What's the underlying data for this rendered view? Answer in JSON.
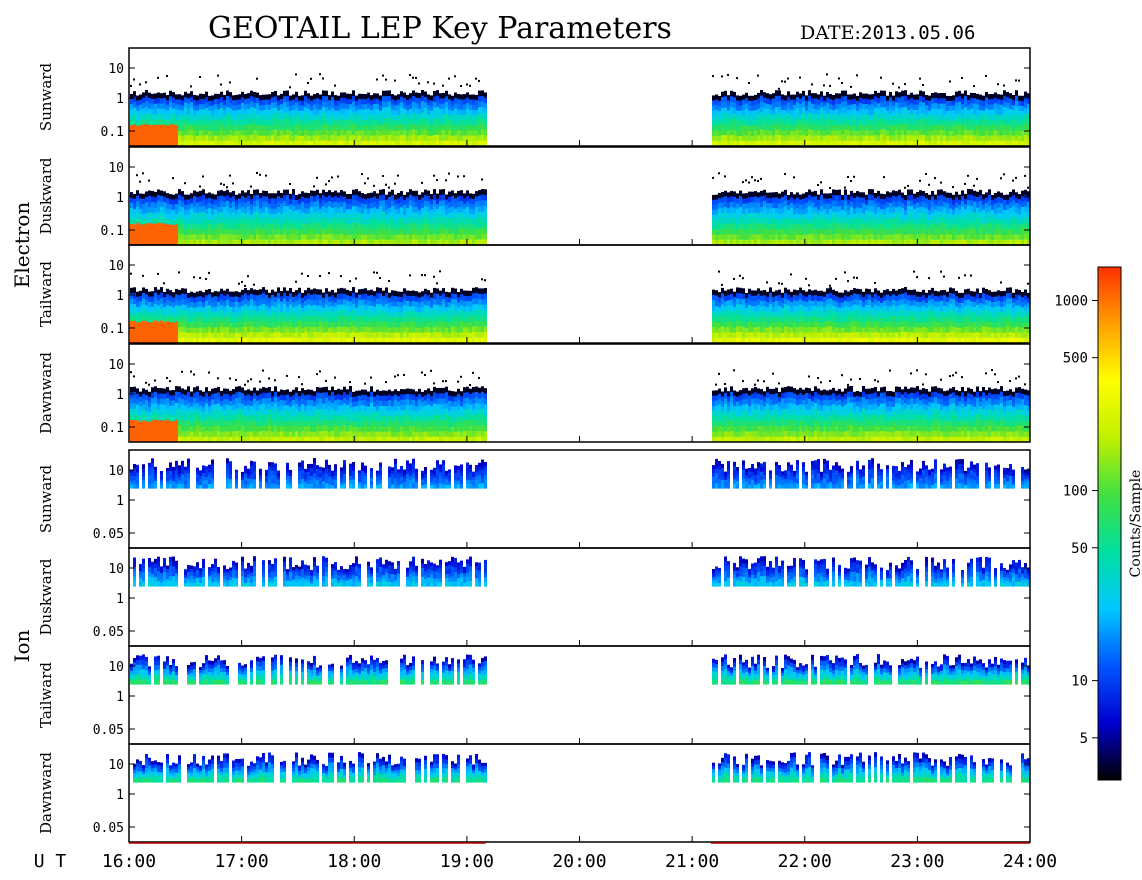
{
  "header": {
    "title": "GEOTAIL LEP Key Parameters",
    "date_label": "DATE:",
    "date_value": "2013.05.06"
  },
  "chart_data": {
    "type": "heatmap",
    "title": "GEOTAIL LEP Key Parameters",
    "date": "2013.05.06",
    "x_axis": {
      "label": "U T",
      "range": [
        "16:00",
        "24:00"
      ],
      "ticks": [
        "16:00",
        "17:00",
        "18:00",
        "19:00",
        "20:00",
        "21:00",
        "22:00",
        "23:00",
        "24:00"
      ]
    },
    "data_gaps_ut": [
      [
        "19:10",
        "21:10"
      ]
    ],
    "groups": [
      {
        "name": "Electron",
        "panels": [
          {
            "direction": "Sunward",
            "y_ticks": [
              "10",
              "1",
              "0.1"
            ],
            "scale": "log",
            "level": 1.0
          },
          {
            "direction": "Duskward",
            "y_ticks": [
              "10",
              "1",
              "0.1"
            ],
            "scale": "log",
            "level": 0.9
          },
          {
            "direction": "Tailward",
            "y_ticks": [
              "10",
              "1",
              "0.1"
            ],
            "scale": "log",
            "level": 1.05
          },
          {
            "direction": "Dawnward",
            "y_ticks": [
              "10",
              "1",
              "0.1"
            ],
            "scale": "log",
            "level": 0.95
          }
        ]
      },
      {
        "name": "Ion",
        "panels": [
          {
            "direction": "Sunward",
            "y_ticks": [
              "10",
              "1",
              "0.05"
            ],
            "scale": "log",
            "level": 0.35
          },
          {
            "direction": "Duskward",
            "y_ticks": [
              "10",
              "1",
              "0.05"
            ],
            "scale": "log",
            "level": 0.45
          },
          {
            "direction": "Tailward",
            "y_ticks": [
              "10",
              "1",
              "0.05"
            ],
            "scale": "log",
            "level": 0.75
          },
          {
            "direction": "Dawnward",
            "y_ticks": [
              "10",
              "1",
              "0.05"
            ],
            "scale": "log",
            "level": 0.7
          }
        ]
      }
    ],
    "colorbar": {
      "label": "Counts/Sample",
      "scale": "log",
      "range": [
        3,
        1500
      ],
      "ticks": [
        {
          "value": 1000,
          "label": "1000"
        },
        {
          "value": 500,
          "label": "500"
        },
        {
          "value": 100,
          "label": "100"
        },
        {
          "value": 50,
          "label": "50"
        },
        {
          "value": 10,
          "label": "10"
        },
        {
          "value": 5,
          "label": "5"
        }
      ],
      "colors": [
        "#000000",
        "#0000d0",
        "#0055ff",
        "#00c8ff",
        "#00e0a0",
        "#40e040",
        "#c0f000",
        "#ffff00",
        "#ffa000",
        "#ff3000"
      ]
    }
  }
}
